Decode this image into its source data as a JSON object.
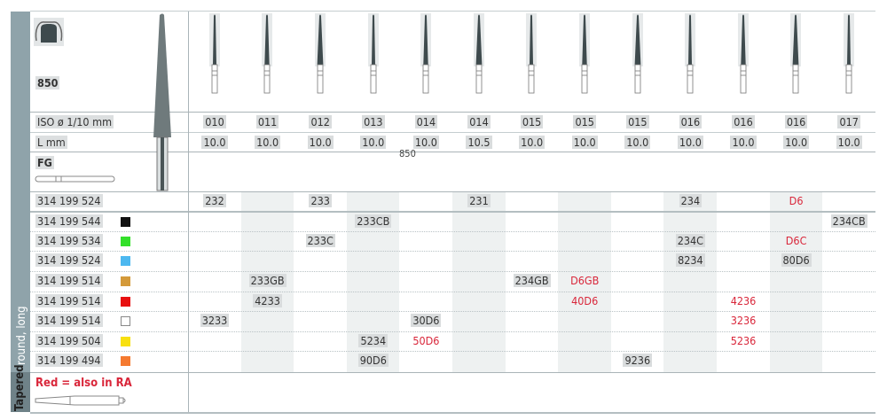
{
  "product": {
    "figure": "850",
    "shank": "FG",
    "watermark": "850",
    "crown_icon": "crown-prep-icon"
  },
  "labels": {
    "iso": "ISO ø 1/10 mm",
    "length": "L mm",
    "side_top": "round, long",
    "side_bottom": "Tapered",
    "legend": "Red = also in RA"
  },
  "columns": [
    {
      "iso": "010",
      "l": "10.0"
    },
    {
      "iso": "011",
      "l": "10.0"
    },
    {
      "iso": "012",
      "l": "10.0"
    },
    {
      "iso": "013",
      "l": "10.0"
    },
    {
      "iso": "014",
      "l": "10.0"
    },
    {
      "iso": "014",
      "l": "10.5"
    },
    {
      "iso": "015",
      "l": "10.0"
    },
    {
      "iso": "015",
      "l": "10.0"
    },
    {
      "iso": "015",
      "l": "10.0"
    },
    {
      "iso": "016",
      "l": "10.0"
    },
    {
      "iso": "016",
      "l": "10.0"
    },
    {
      "iso": "016",
      "l": "10.0"
    },
    {
      "iso": "017",
      "l": "10.0"
    }
  ],
  "colors": {
    "red_text": "#d9263a",
    "band": "#8fa3aa"
  },
  "rows": [
    {
      "ref": "314 199 524",
      "color": null,
      "cells": [
        {
          "col": 1,
          "v": "232"
        },
        {
          "col": 3,
          "v": "233"
        },
        {
          "col": 6,
          "v": "231"
        },
        {
          "col": 10,
          "v": "234"
        },
        {
          "col": 12,
          "v": "D6",
          "red": true
        }
      ]
    },
    {
      "ref": "314 199 544",
      "color": "#111111",
      "cells": [
        {
          "col": 4,
          "v": "233CB"
        },
        {
          "col": 13,
          "v": "234CB"
        }
      ]
    },
    {
      "ref": "314 199 534",
      "color": "#33e02a",
      "cells": [
        {
          "col": 3,
          "v": "233C"
        },
        {
          "col": 10,
          "v": "234C"
        },
        {
          "col": 12,
          "v": "D6C",
          "red": true
        }
      ]
    },
    {
      "ref": "314 199 524",
      "color": "#4db8f0",
      "cells": [
        {
          "col": 10,
          "v": "8234"
        },
        {
          "col": 12,
          "v": "80D6"
        }
      ]
    },
    {
      "ref": "314 199 514",
      "color": "#d49a3a",
      "cells": [
        {
          "col": 2,
          "v": "233GB"
        },
        {
          "col": 7,
          "v": "234GB"
        },
        {
          "col": 8,
          "v": "D6GB",
          "red": true
        }
      ]
    },
    {
      "ref": "314 199 514",
      "color": "#e81010",
      "cells": [
        {
          "col": 2,
          "v": "4233"
        },
        {
          "col": 8,
          "v": "40D6",
          "red": true
        },
        {
          "col": 11,
          "v": "4236",
          "red": true
        }
      ]
    },
    {
      "ref": "314 199 514",
      "color": "#ffffff",
      "cells": [
        {
          "col": 1,
          "v": "3233"
        },
        {
          "col": 5,
          "v": "30D6"
        },
        {
          "col": 11,
          "v": "3236",
          "red": true
        }
      ]
    },
    {
      "ref": "314 199 504",
      "color": "#f8e010",
      "cells": [
        {
          "col": 4,
          "v": "5234"
        },
        {
          "col": 5,
          "v": "50D6",
          "red": true
        },
        {
          "col": 11,
          "v": "5236",
          "red": true
        }
      ]
    },
    {
      "ref": "314 199 494",
      "color": "#f57a30",
      "cells": [
        {
          "col": 4,
          "v": "90D6"
        },
        {
          "col": 9,
          "v": "9236"
        }
      ]
    }
  ]
}
